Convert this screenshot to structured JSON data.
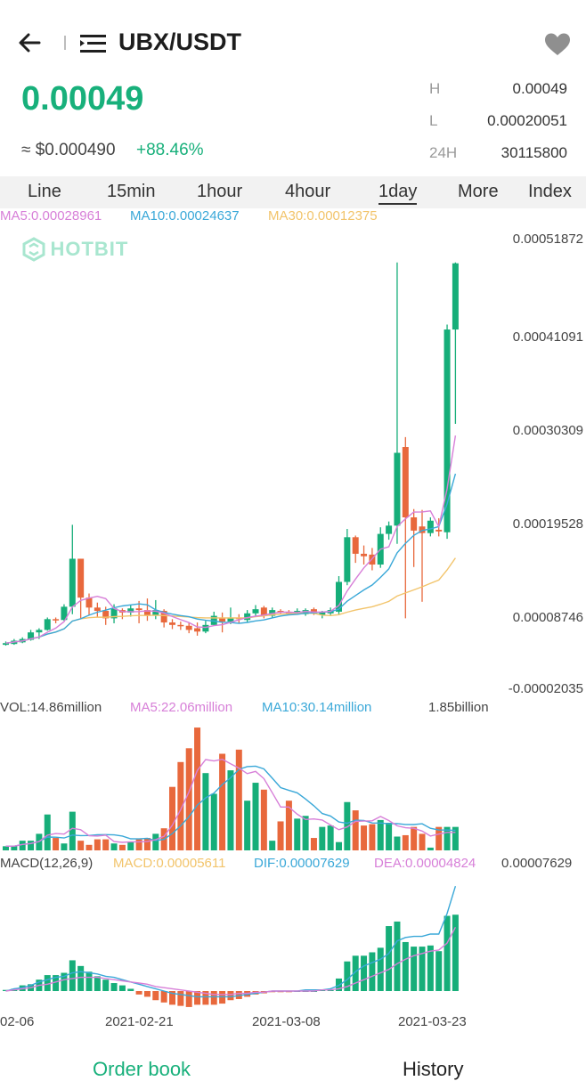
{
  "header": {
    "pair": "UBX/USDT",
    "back_icon": "arrow-left-icon",
    "menu_icon": "menu-icon",
    "favorite_icon": "heart-icon"
  },
  "ticker": {
    "price": "0.00049",
    "usd_price": "≈ $0.000490",
    "change": "+88.46%",
    "high_label": "H",
    "high": "0.00049",
    "low_label": "L",
    "low": "0.00020051",
    "vol_label": "24H",
    "vol": "30115800"
  },
  "tabs": [
    "Line",
    "15min",
    "1hour",
    "4hour",
    "1day",
    "More",
    "Index"
  ],
  "active_tab": "1day",
  "ma_legend": {
    "ma5": "MA5:0.00028961",
    "ma10": "MA10:0.00024637",
    "ma30": "MA30:0.00012375"
  },
  "watermark": "HOTBIT",
  "vol_legend": {
    "vol": "VOL:14.86million",
    "ma5": "MA5:22.06million",
    "ma10": "MA10:30.14million",
    "max": "1.85billion"
  },
  "macd_legend": {
    "name": "MACD(12,26,9)",
    "macd": "MACD:0.00005611",
    "dif": "DIF:0.00007629",
    "dea": "DEA:0.00004824",
    "max": "0.00007629"
  },
  "bottom_tabs": {
    "left": "Order book",
    "right": "History"
  },
  "colors": {
    "up": "#16ae79",
    "down": "#e8683c",
    "ma5": "#d77fd8",
    "ma10": "#3aa8d8",
    "ma30": "#f2c46b"
  },
  "chart_data": {
    "type": "candlestick",
    "y_ticks": [
      "0.00051872",
      "0.00041091",
      "0.00030309",
      "0.00019528",
      "0.00008746",
      "-0.00002035"
    ],
    "x_ticks": [
      "02-06",
      "2021-02-21",
      "2021-03-08",
      "2021-03-23"
    ],
    "candles": [
      {
        "o": 2.9e-05,
        "c": 3.1e-05,
        "h": 3.3e-05,
        "l": 2.8e-05
      },
      {
        "o": 3e-05,
        "c": 3.4e-05,
        "h": 3.6e-05,
        "l": 2.9e-05
      },
      {
        "o": 3.2e-05,
        "c": 3.6e-05,
        "h": 3.8e-05,
        "l": 3.1e-05
      },
      {
        "o": 3.5e-05,
        "c": 4.4e-05,
        "h": 4.7e-05,
        "l": 3.4e-05
      },
      {
        "o": 4.4e-05,
        "c": 4.7e-05,
        "h": 4.9e-05,
        "l": 3.6e-05
      },
      {
        "o": 4.7e-05,
        "c": 6e-05,
        "h": 6.2e-05,
        "l": 4.6e-05
      },
      {
        "o": 6e-05,
        "c": 5.9e-05,
        "h": 6.2e-05,
        "l": 5.5e-05
      },
      {
        "o": 5.9e-05,
        "c": 7.5e-05,
        "h": 7.8e-05,
        "l": 5.8e-05
      },
      {
        "o": 7.5e-05,
        "c": 0.000133,
        "h": 0.000174,
        "l": 6.6e-05
      },
      {
        "o": 0.000133,
        "c": 8.6e-05,
        "h": 0.000133,
        "l": 6e-05
      },
      {
        "o": 8.6e-05,
        "c": 7.4e-05,
        "h": 9.1e-05,
        "l": 6.5e-05
      },
      {
        "o": 7.4e-05,
        "c": 7e-05,
        "h": 8e-05,
        "l": 6.2e-05
      },
      {
        "o": 7e-05,
        "c": 6.1e-05,
        "h": 7.5e-05,
        "l": 5.3e-05
      },
      {
        "o": 6.1e-05,
        "c": 7.3e-05,
        "h": 7.8e-05,
        "l": 5.5e-05
      },
      {
        "o": 7.1e-05,
        "c": 6.8e-05,
        "h": 7.3e-05,
        "l": 6e-05
      },
      {
        "o": 6.8e-05,
        "c": 7.3e-05,
        "h": 7.7e-05,
        "l": 6.3e-05
      },
      {
        "o": 7.3e-05,
        "c": 7.1e-05,
        "h": 8.2e-05,
        "l": 5.5e-05
      },
      {
        "o": 7.1e-05,
        "c": 6.5e-05,
        "h": 8.5e-05,
        "l": 5.8e-05
      },
      {
        "o": 6.5e-05,
        "c": 7.1e-05,
        "h": 8.3e-05,
        "l": 6e-05
      },
      {
        "o": 7e-05,
        "c": 5.6e-05,
        "h": 7.2e-05,
        "l": 5e-05
      },
      {
        "o": 5.6e-05,
        "c": 5.3e-05,
        "h": 6e-05,
        "l": 4.8e-05
      },
      {
        "o": 5.3e-05,
        "c": 5.2e-05,
        "h": 5.7e-05,
        "l": 4.7e-05
      },
      {
        "o": 5.2e-05,
        "c": 4.7e-05,
        "h": 5.6e-05,
        "l": 4.3e-05
      },
      {
        "o": 4.9e-05,
        "c": 4.5e-05,
        "h": 5.6e-05,
        "l": 4e-05
      },
      {
        "o": 4.5e-05,
        "c": 5.3e-05,
        "h": 5.8e-05,
        "l": 4.3e-05
      },
      {
        "o": 5.3e-05,
        "c": 6.4e-05,
        "h": 6.9e-05,
        "l": 5.2e-05
      },
      {
        "o": 6.2e-05,
        "c": 5.7e-05,
        "h": 6.8e-05,
        "l": 4.4e-05
      },
      {
        "o": 5.7e-05,
        "c": 6.2e-05,
        "h": 7.4e-05,
        "l": 5.4e-05
      },
      {
        "o": 6.2e-05,
        "c": 6e-05,
        "h": 6.6e-05,
        "l": 5.5e-05
      },
      {
        "o": 5.9e-05,
        "c": 6.7e-05,
        "h": 7.1e-05,
        "l": 5.6e-05
      },
      {
        "o": 6.7e-05,
        "c": 7.2e-05,
        "h": 7.7e-05,
        "l": 6.4e-05
      },
      {
        "o": 7.4e-05,
        "c": 6.4e-05,
        "h": 7.6e-05,
        "l": 6.1e-05
      },
      {
        "o": 6.4e-05,
        "c": 7.1e-05,
        "h": 7.4e-05,
        "l": 6.2e-05
      },
      {
        "o": 7e-05,
        "c": 6.8e-05,
        "h": 7.2e-05,
        "l": 6.6e-05
      },
      {
        "o": 6.9e-05,
        "c": 6.7e-05,
        "h": 7.1e-05,
        "l": 6.5e-05
      },
      {
        "o": 6.8e-05,
        "c": 7e-05,
        "h": 7.3e-05,
        "l": 6.6e-05
      },
      {
        "o": 6.6e-05,
        "c": 7.1e-05,
        "h": 7.3e-05,
        "l": 6.4e-05
      },
      {
        "o": 7.2e-05,
        "c": 6.7e-05,
        "h": 7.4e-05,
        "l": 6.5e-05
      },
      {
        "o": 6.5e-05,
        "c": 6.8e-05,
        "h": 7e-05,
        "l": 6.1e-05
      },
      {
        "o": 6.7e-05,
        "c": 7.1e-05,
        "h": 7.4e-05,
        "l": 6.5e-05
      },
      {
        "o": 6.9e-05,
        "c": 0.000105,
        "h": 0.000112,
        "l": 6.6e-05
      },
      {
        "o": 0.000105,
        "c": 0.000159,
        "h": 0.000169,
        "l": 0.000101
      },
      {
        "o": 0.000159,
        "c": 0.000139,
        "h": 0.000161,
        "l": 0.000128
      },
      {
        "o": 0.000139,
        "c": 0.000136,
        "h": 0.000149,
        "l": 0.000126
      },
      {
        "o": 0.000138,
        "c": 0.000126,
        "h": 0.000146,
        "l": 0.000119
      },
      {
        "o": 0.000126,
        "c": 0.000163,
        "h": 0.000171,
        "l": 0.000122
      },
      {
        "o": 0.000163,
        "c": 0.000173,
        "h": 0.000178,
        "l": 0.000156
      },
      {
        "o": 0.000173,
        "c": 0.000261,
        "h": 0.000491,
        "l": 0.000151
      },
      {
        "o": 0.000268,
        "c": 0.000183,
        "h": 0.00028,
        "l": 6.1e-05
      },
      {
        "o": 0.000183,
        "c": 0.000167,
        "h": 0.000193,
        "l": 0.000123
      },
      {
        "o": 0.000172,
        "c": 0.000164,
        "h": 0.000192,
        "l": 8.1e-05
      },
      {
        "o": 0.000164,
        "c": 0.000179,
        "h": 0.000183,
        "l": 0.00016
      },
      {
        "o": 0.000168,
        "c": 0.000166,
        "h": 0.000182,
        "l": 0.00016
      },
      {
        "o": 0.000165,
        "c": 0.00041,
        "h": 0.000416,
        "l": 0.000157
      },
      {
        "o": 0.00041,
        "c": 0.00049,
        "h": 0.000491,
        "l": 0.000296
      }
    ],
    "volume_relative": [
      0.03,
      0.03,
      0.07,
      0.07,
      0.12,
      0.26,
      0.09,
      0.05,
      0.28,
      0.07,
      0.04,
      0.08,
      0.08,
      0.05,
      0.04,
      0.06,
      0.08,
      0.09,
      0.12,
      0.16,
      0.46,
      0.64,
      0.74,
      0.89,
      0.56,
      0.41,
      0.7,
      0.58,
      0.73,
      0.36,
      0.49,
      0.44,
      0.07,
      0.21,
      0.36,
      0.23,
      0.25,
      0.09,
      0.17,
      0.18,
      0.06,
      0.35,
      0.29,
      0.18,
      0.19,
      0.22,
      0.2,
      0.1,
      0.11,
      0.17,
      0.12,
      0.02,
      0.17,
      0.17,
      0.17
    ],
    "macd_hist_relative": [
      0.01,
      0.02,
      0.05,
      0.06,
      0.1,
      0.14,
      0.14,
      0.16,
      0.27,
      0.22,
      0.17,
      0.13,
      0.1,
      0.07,
      0.05,
      0.02,
      -0.03,
      -0.05,
      -0.08,
      -0.1,
      -0.12,
      -0.13,
      -0.14,
      -0.12,
      -0.12,
      -0.12,
      -0.11,
      -0.08,
      -0.07,
      -0.05,
      -0.03,
      -0.02,
      -0.01,
      -0.01,
      -0.01,
      0.0,
      0.0,
      0.0,
      0.01,
      0.01,
      0.11,
      0.26,
      0.31,
      0.31,
      0.34,
      0.38,
      0.57,
      0.61,
      0.43,
      0.39,
      0.39,
      0.4,
      0.35,
      0.66,
      0.67
    ],
    "macd_dif_relative": [
      0.0,
      0.02,
      0.03,
      0.05,
      0.08,
      0.1,
      0.12,
      0.13,
      0.16,
      0.17,
      0.16,
      0.15,
      0.13,
      0.12,
      0.1,
      0.08,
      0.06,
      0.04,
      0.02,
      0.0,
      -0.02,
      -0.03,
      -0.04,
      -0.05,
      -0.05,
      -0.05,
      -0.05,
      -0.05,
      -0.04,
      -0.03,
      -0.02,
      -0.01,
      0.0,
      0.0,
      0.0,
      0.0,
      0.01,
      0.01,
      0.01,
      0.02,
      0.05,
      0.1,
      0.17,
      0.22,
      0.25,
      0.28,
      0.33,
      0.44,
      0.47,
      0.48,
      0.48,
      0.5,
      0.5,
      0.68,
      0.92
    ],
    "macd_dea_relative": [
      0.0,
      0.01,
      0.02,
      0.03,
      0.05,
      0.06,
      0.08,
      0.1,
      0.11,
      0.12,
      0.12,
      0.12,
      0.11,
      0.1,
      0.09,
      0.08,
      0.07,
      0.06,
      0.04,
      0.03,
      0.02,
      0.01,
      0.0,
      -0.01,
      -0.02,
      -0.03,
      -0.03,
      -0.03,
      -0.02,
      -0.02,
      -0.01,
      -0.01,
      0.0,
      0.0,
      0.0,
      0.0,
      0.0,
      0.0,
      0.01,
      0.01,
      0.02,
      0.04,
      0.07,
      0.1,
      0.13,
      0.16,
      0.19,
      0.24,
      0.28,
      0.31,
      0.33,
      0.35,
      0.36,
      0.42,
      0.56
    ]
  }
}
